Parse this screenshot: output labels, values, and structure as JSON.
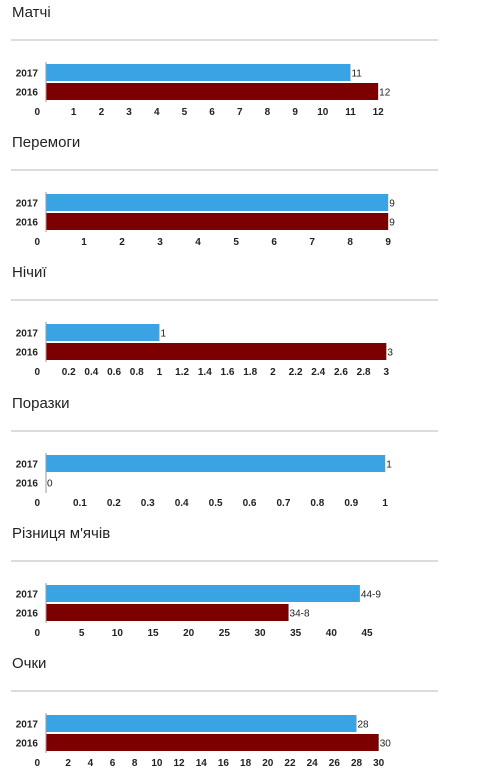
{
  "colors": {
    "y2017": "#3aa3e3",
    "y2016": "#7d0000",
    "axis": "#999999",
    "rule": "#dcdcdc"
  },
  "chart_data": [
    {
      "type": "bar",
      "title": "Матчі",
      "categories": [
        "2017",
        "2016"
      ],
      "values": [
        11,
        12
      ],
      "value_labels": [
        "11",
        "12"
      ],
      "xlim": [
        0,
        12.5
      ],
      "ticks": [
        0,
        1,
        2,
        3,
        4,
        5,
        6,
        7,
        8,
        9,
        10,
        11,
        12
      ],
      "tick_labels": [
        "0",
        "1",
        "2",
        "3",
        "4",
        "5",
        "6",
        "7",
        "8",
        "9",
        "10",
        "11",
        "12"
      ]
    },
    {
      "type": "bar",
      "title": "Перемоги",
      "categories": [
        "2017",
        "2016"
      ],
      "values": [
        9,
        9
      ],
      "value_labels": [
        "9",
        "9"
      ],
      "xlim": [
        0,
        9.1
      ],
      "ticks": [
        0,
        1,
        2,
        3,
        4,
        5,
        6,
        7,
        8,
        9
      ],
      "tick_labels": [
        "0",
        "1",
        "2",
        "3",
        "4",
        "5",
        "6",
        "7",
        "8",
        "9"
      ]
    },
    {
      "type": "bar",
      "title": "Нічиї",
      "categories": [
        "2017",
        "2016"
      ],
      "values": [
        1,
        3
      ],
      "value_labels": [
        "1",
        "3"
      ],
      "xlim": [
        0,
        3.05
      ],
      "ticks": [
        0,
        0.2,
        0.4,
        0.6,
        0.8,
        1,
        1.2,
        1.4,
        1.6,
        1.8,
        2,
        2.2,
        2.4,
        2.6,
        2.8,
        3
      ],
      "tick_labels": [
        "0",
        "0.2",
        "0.4",
        "0.6",
        "0.8",
        "1",
        "1.2",
        "1.4",
        "1.6",
        "1.8",
        "2",
        "2.2",
        "2.4",
        "2.6",
        "2.8",
        "3"
      ]
    },
    {
      "type": "bar",
      "title": "Поразки",
      "categories": [
        "2017",
        "2016"
      ],
      "values": [
        1,
        0
      ],
      "value_labels": [
        "1",
        "0"
      ],
      "xlim": [
        0,
        1.02
      ],
      "ticks": [
        0,
        0.1,
        0.2,
        0.3,
        0.4,
        0.5,
        0.6,
        0.7,
        0.8,
        0.9,
        1
      ],
      "tick_labels": [
        "0",
        "0.1",
        "0.2",
        "0.3",
        "0.4",
        "0.5",
        "0.6",
        "0.7",
        "0.8",
        "0.9",
        "1"
      ]
    },
    {
      "type": "bar",
      "title": "Різниця м'ячів",
      "categories": [
        "2017",
        "2016"
      ],
      "values": [
        44,
        34
      ],
      "value_labels": [
        "44-9",
        "34-8"
      ],
      "xlim": [
        0,
        48.5
      ],
      "ticks": [
        0,
        5,
        10,
        15,
        20,
        25,
        30,
        35,
        40,
        45
      ],
      "tick_labels": [
        "0",
        "5",
        "10",
        "15",
        "20",
        "25",
        "30",
        "35",
        "40",
        "45"
      ]
    },
    {
      "type": "bar",
      "title": "Очки",
      "categories": [
        "2017",
        "2016"
      ],
      "values": [
        28,
        30
      ],
      "value_labels": [
        "28",
        "30"
      ],
      "xlim": [
        0,
        31.2
      ],
      "ticks": [
        0,
        2,
        4,
        6,
        8,
        10,
        12,
        14,
        16,
        18,
        20,
        22,
        24,
        26,
        28,
        30
      ],
      "tick_labels": [
        "0",
        "2",
        "4",
        "6",
        "8",
        "10",
        "12",
        "14",
        "16",
        "18",
        "20",
        "22",
        "24",
        "26",
        "28",
        "30"
      ]
    }
  ]
}
